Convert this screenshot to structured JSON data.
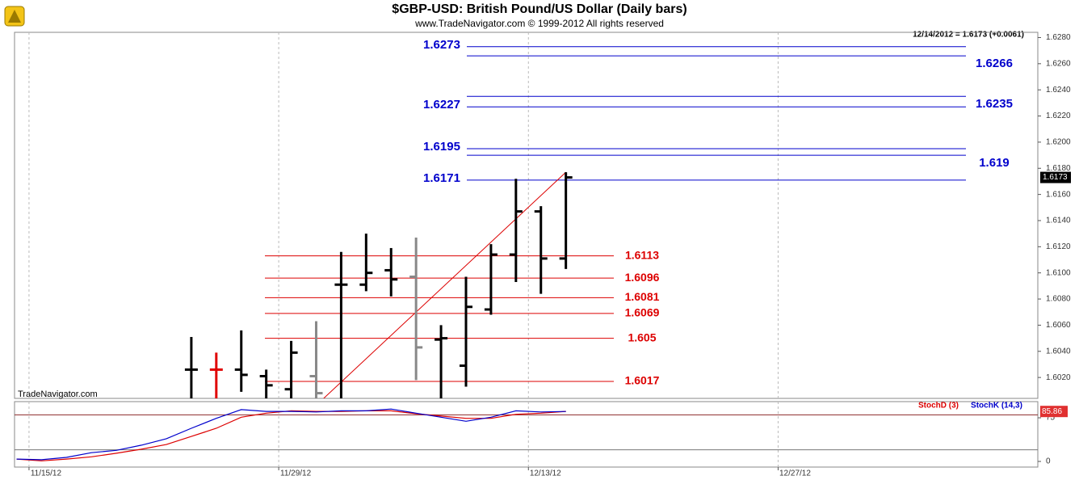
{
  "title": "$GBP-USD:  British Pound/US Dollar  (Daily bars)",
  "subtitle": "www.TradeNavigator.com © 1999-2012 All rights reserved",
  "status": "12/14/2012 = 1.6173 (+0.0061)",
  "watermark": "TradeNavigator.com",
  "chart_data": [
    {
      "type": "ohlc",
      "x": [
        6.5,
        7.5,
        8.5,
        9.5,
        10.5,
        11.5,
        12.5,
        13.5,
        14.5,
        15.5,
        16.5,
        17.5,
        18.5,
        19.5,
        20.5,
        21.5
      ],
      "open": [
        1.6026,
        1.6026,
        1.6026,
        1.6021,
        1.6011,
        1.6021,
        1.6091,
        1.6091,
        1.6102,
        1.6097,
        1.6049,
        1.6029,
        1.6072,
        1.6114,
        1.6147,
        1.6111
      ],
      "high": [
        1.6051,
        1.6039,
        1.6056,
        1.6026,
        1.6048,
        1.6063,
        1.6116,
        1.613,
        1.6119,
        1.6127,
        1.606,
        1.6097,
        1.6122,
        1.6172,
        1.6151,
        1.6177
      ],
      "low": [
        1.5995,
        1.5995,
        1.6009,
        1.5995,
        1.5995,
        1.5995,
        1.5995,
        1.6086,
        1.6082,
        1.6018,
        1.5995,
        1.6013,
        1.6068,
        1.6093,
        1.6084,
        1.6103
      ],
      "close": [
        1.6026,
        1.6026,
        1.6022,
        1.6014,
        1.6039,
        1.6008,
        1.6091,
        1.61,
        1.6095,
        1.6043,
        1.605,
        1.6074,
        1.6114,
        1.6147,
        1.6111,
        1.6173
      ],
      "colors": [
        "#000000",
        "#e00000",
        "#000000",
        "#000000",
        "#000000",
        "#888888",
        "#000000",
        "#000000",
        "#000000",
        "#888888",
        "#000000",
        "#000000",
        "#000000",
        "#000000",
        "#000000",
        "#000000"
      ],
      "xlim": [
        -0.58,
        40.4
      ],
      "ylim": [
        1.6004,
        1.6284
      ],
      "yticks": [
        {
          "value": 1.602,
          "label": "1.6020"
        },
        {
          "value": 1.604,
          "label": "1.6040"
        },
        {
          "value": 1.606,
          "label": "1.6060"
        },
        {
          "value": 1.608,
          "label": "1.6080"
        },
        {
          "value": 1.61,
          "label": "1.6100"
        },
        {
          "value": 1.612,
          "label": "1.6120"
        },
        {
          "value": 1.614,
          "label": "1.6140"
        },
        {
          "value": 1.616,
          "label": "1.6160"
        },
        {
          "value": 1.618,
          "label": "1.6180"
        },
        {
          "value": 1.62,
          "label": "1.6200"
        },
        {
          "value": 1.622,
          "label": "1.6220"
        },
        {
          "value": 1.624,
          "label": "1.6240"
        },
        {
          "value": 1.626,
          "label": "1.6260"
        },
        {
          "value": 1.628,
          "label": "1.6280"
        }
      ],
      "upper_levels": [
        1.6273,
        1.6266,
        1.6235,
        1.6227,
        1.6195,
        1.619,
        1.6171
      ],
      "upper_label_sides": [
        "left",
        "right",
        "right",
        "left",
        "left",
        "right",
        "left"
      ],
      "upper_color": "#0000cc",
      "lower_levels": [
        1.6113,
        1.6096,
        1.6081,
        1.6069,
        1.605,
        1.6017
      ],
      "lower_color": "#dd0000",
      "trendline": {
        "x": [
          11.8,
          21.5
        ],
        "y": [
          1.6004,
          1.6177
        ],
        "color": "#dd0000"
      },
      "last_price": 1.6173
    },
    {
      "type": "line",
      "x": [
        -0.5,
        0.5,
        1.5,
        2.5,
        3.5,
        4.5,
        5.5,
        6.5,
        7.5,
        8.5,
        9.5,
        10.5,
        11.5,
        12.5,
        13.5,
        14.5,
        15.5,
        16.5,
        17.5,
        18.5,
        19.5,
        20.5,
        21.5
      ],
      "series": [
        {
          "name": "StochD (3)",
          "color": "#dd0000",
          "values": [
            4,
            1,
            4,
            8,
            14,
            21,
            29,
            43,
            57,
            76,
            83,
            87,
            86,
            86,
            87,
            87,
            82,
            78,
            74,
            74,
            81,
            83,
            86
          ]
        },
        {
          "name": "StochK (14,3)",
          "color": "#0000cc",
          "values": [
            4,
            3,
            7,
            15,
            19,
            28,
            39,
            57,
            74,
            89,
            86,
            86,
            85,
            87,
            87,
            90,
            83,
            76,
            69,
            76,
            87,
            85,
            85.86
          ]
        }
      ],
      "xlim": [
        -0.58,
        40.4
      ],
      "xticks": [
        {
          "value": 0,
          "label": "11/15/12"
        },
        {
          "value": 10,
          "label": "11/29/12"
        },
        {
          "value": 20,
          "label": "12/13/12"
        },
        {
          "value": 30,
          "label": "12/27/12"
        }
      ],
      "ylim": [
        -9.7,
        102.8
      ],
      "yticks": [
        0,
        75
      ],
      "reference_lines": [
        80,
        20
      ],
      "last_value": 85.86
    }
  ]
}
